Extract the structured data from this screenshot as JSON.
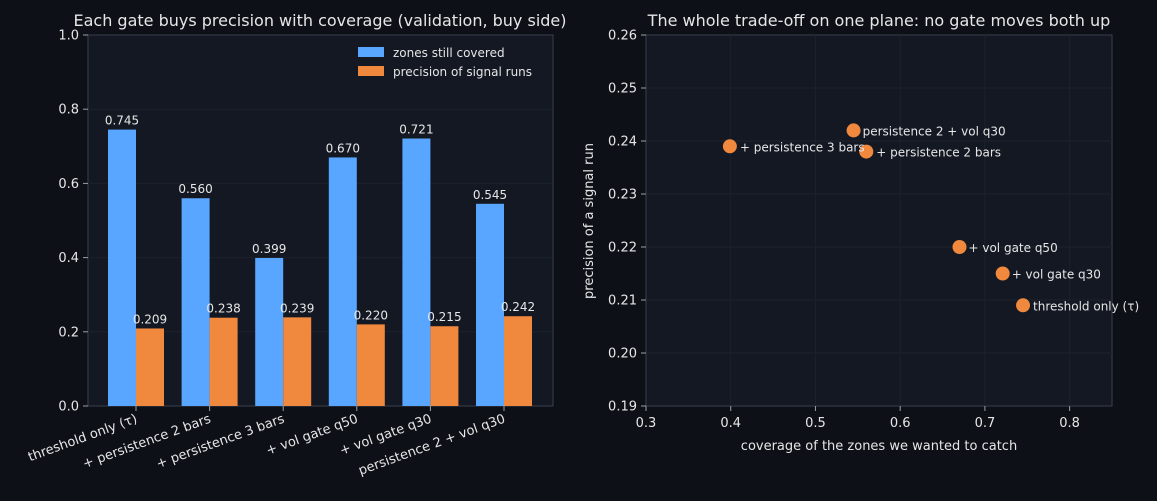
{
  "colors": {
    "background": "#0d1017",
    "plot_background": "#131822",
    "frame": "#3a404c",
    "grid": "#1c222c",
    "text": "#e6e6e6",
    "coverage": "#58a6ff",
    "precision": "#f0883e"
  },
  "chart_data": [
    {
      "type": "bar",
      "title": "Each gate buys precision with coverage (validation, buy side)",
      "xlabel": "",
      "ylabel": "",
      "ylim": [
        0,
        1.0
      ],
      "yticks": [
        "0.0",
        "0.2",
        "0.4",
        "0.6",
        "0.8",
        "1.0"
      ],
      "ytick_values": [
        0,
        0.2,
        0.4,
        0.6,
        0.8,
        1.0
      ],
      "categories": [
        "threshold only (τ)",
        "+ persistence 2 bars",
        "+ persistence 3 bars",
        "+ vol gate q50",
        "+ vol gate q30",
        "persistence 2 + vol q30"
      ],
      "series": [
        {
          "name": "zones still covered",
          "values": [
            0.745,
            0.56,
            0.399,
            0.67,
            0.721,
            0.545
          ],
          "labels": [
            "0.745",
            "0.560",
            "0.399",
            "0.670",
            "0.721",
            "0.545"
          ]
        },
        {
          "name": "precision of signal runs",
          "values": [
            0.209,
            0.238,
            0.239,
            0.22,
            0.215,
            0.242
          ],
          "labels": [
            "0.209",
            "0.238",
            "0.239",
            "0.220",
            "0.215",
            "0.242"
          ]
        }
      ],
      "legend": "top-right",
      "grid": true
    },
    {
      "type": "scatter",
      "title": "The whole trade-off on one plane: no gate moves both up",
      "xlabel": "coverage of the zones we wanted to catch",
      "ylabel": "precision of a signal run",
      "xlim": [
        0.3,
        0.85
      ],
      "ylim": [
        0.19,
        0.26
      ],
      "xticks": [
        "0.3",
        "0.4",
        "0.5",
        "0.6",
        "0.7",
        "0.8"
      ],
      "xtick_values": [
        0.3,
        0.4,
        0.5,
        0.6,
        0.7,
        0.8
      ],
      "yticks": [
        "0.19",
        "0.20",
        "0.21",
        "0.22",
        "0.23",
        "0.24",
        "0.25",
        "0.26"
      ],
      "ytick_values": [
        0.19,
        0.2,
        0.21,
        0.22,
        0.23,
        0.24,
        0.25,
        0.26
      ],
      "points": [
        {
          "label": "threshold only (τ)",
          "x": 0.745,
          "y": 0.209
        },
        {
          "label": "+ persistence 2 bars",
          "x": 0.56,
          "y": 0.238
        },
        {
          "label": "+ persistence 3 bars",
          "x": 0.399,
          "y": 0.239
        },
        {
          "label": "+ vol gate q50",
          "x": 0.67,
          "y": 0.22
        },
        {
          "label": "+ vol gate q30",
          "x": 0.721,
          "y": 0.215
        },
        {
          "label": "persistence 2 + vol q30",
          "x": 0.545,
          "y": 0.242
        }
      ],
      "grid": true
    }
  ]
}
